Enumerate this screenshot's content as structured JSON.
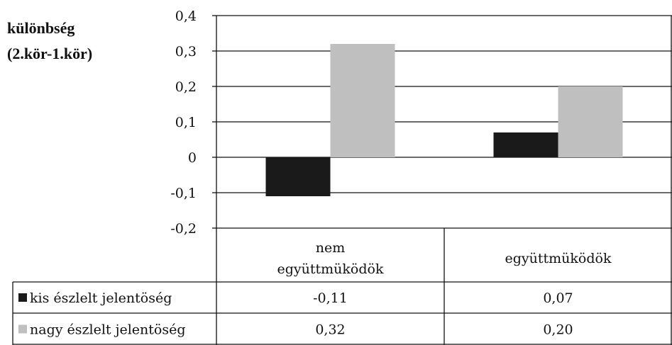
{
  "chart_data": {
    "type": "bar",
    "ylabel": [
      "különbség",
      "(2.kör-1.kör)"
    ],
    "y_ticks": [
      "0,4",
      "0,3",
      "0,2",
      "0,1",
      "0",
      "-0,1",
      "-0,2"
    ],
    "ylim": [
      -0.2,
      0.4
    ],
    "grid": true,
    "categories": [
      "nem együttmüködök",
      "együttmüködök"
    ],
    "series": [
      {
        "name": "kis észlelt jelentöség",
        "values": [
          -0.11,
          0.07
        ],
        "labels": [
          "-0,11",
          "0,07"
        ],
        "color": "#1a1a1a"
      },
      {
        "name": "nagy észlelt jelentöség",
        "values": [
          0.32,
          0.2
        ],
        "labels": [
          "0,32",
          "0,20"
        ],
        "color": "#bfbfbf"
      }
    ],
    "legend": "data-table"
  }
}
